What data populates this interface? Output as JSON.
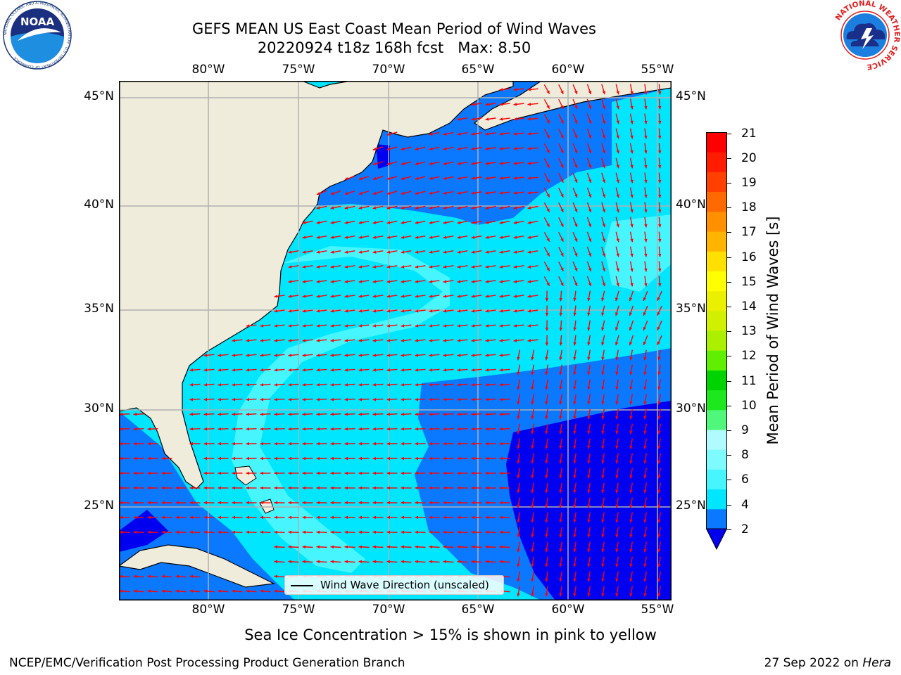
{
  "header": {
    "title": "GEFS MEAN US East Coast Mean Period of Wind Waves",
    "run": "20220924 t18z 168h fcst",
    "max": "Max: 8.50"
  },
  "axes": {
    "lon_ticks": [
      "80°W",
      "75°W",
      "70°W",
      "65°W",
      "60°W",
      "55°W"
    ],
    "lat_ticks": [
      "45°N",
      "40°N",
      "35°N",
      "30°N",
      "25°N"
    ]
  },
  "legend": {
    "label": "Wind Wave Direction (unscaled)",
    "arrow_color": "#ff0000"
  },
  "colorbar": {
    "title": "Mean Period of Wind Waves [s]",
    "labels": [
      "21",
      "20",
      "19",
      "18",
      "17",
      "16",
      "15",
      "14",
      "13",
      "12",
      "11",
      "10",
      "9",
      "8",
      "6",
      "4",
      "2"
    ],
    "colors_bottom_to_top": [
      "#0a78ff",
      "#00e6ff",
      "#47f5ff",
      "#7dfbff",
      "#b0fbff",
      "#4ff87a",
      "#1de81d",
      "#00d400",
      "#5ef000",
      "#aaf000",
      "#d0f000",
      "#eaf000",
      "#ffff00",
      "#ffe000",
      "#ffb400",
      "#ff9000",
      "#ff6a00",
      "#ff4000",
      "#ff1c00",
      "#ff0000"
    ],
    "under_color": "#0000f0"
  },
  "footer": {
    "note": "Sea Ice Concentration > 15% is shown in pink to yellow",
    "credit": "NCEP/EMC/Verification Post Processing Product Generation Branch",
    "date": "27 Sep 2022 on",
    "machine": "Hera"
  },
  "logos": {
    "noaa": "NOAA",
    "noaa_ring": "NATIONAL OCEANIC AND ATMOSPHERIC ADMINISTRATION · U.S. DEPARTMENT OF COMMERCE",
    "nws_ring": "NATIONAL WEATHER SERVICE"
  },
  "map_colors": {
    "land": "#efecdc",
    "sea_2_4": "#0a78ff",
    "sea_4_6": "#00e6ff",
    "sea_6_8": "#47f5ff",
    "sea_under_2": "#0000f0",
    "grid": "#b0b0b0"
  }
}
